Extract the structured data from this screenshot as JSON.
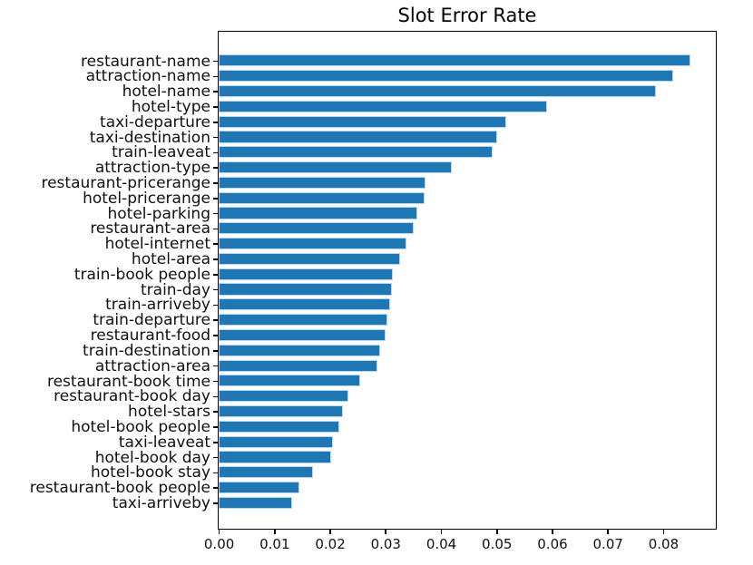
{
  "chart_data": {
    "type": "bar",
    "orientation": "horizontal",
    "title": "Slot Error Rate",
    "xlabel": "",
    "ylabel": "",
    "grid": false,
    "legend": false,
    "bar_color": "#1f77b4",
    "bar_edge_color": "#b9d7ee",
    "axis_color": "#000000",
    "text_color": "#111111",
    "xlim": [
      0,
      0.0893
    ],
    "categories": [
      "restaurant-name",
      "attraction-name",
      "hotel-name",
      "hotel-type",
      "taxi-departure",
      "taxi-destination",
      "train-leaveat",
      "attraction-type",
      "restaurant-pricerange",
      "hotel-pricerange",
      "hotel-parking",
      "restaurant-area",
      "hotel-internet",
      "hotel-area",
      "train-book people",
      "train-day",
      "train-arriveby",
      "train-departure",
      "restaurant-food",
      "train-destination",
      "attraction-area",
      "restaurant-book time",
      "restaurant-book day",
      "hotel-stars",
      "hotel-book people",
      "taxi-leaveat",
      "hotel-book day",
      "hotel-book stay",
      "restaurant-book people",
      "taxi-arriveby"
    ],
    "values": [
      0.085,
      0.0818,
      0.0787,
      0.0592,
      0.0517,
      0.0501,
      0.0494,
      0.0419,
      0.0373,
      0.0371,
      0.0357,
      0.0351,
      0.0338,
      0.0326,
      0.0314,
      0.0312,
      0.0309,
      0.0304,
      0.03,
      0.0291,
      0.0285,
      0.0254,
      0.0234,
      0.0223,
      0.0217,
      0.0206,
      0.0203,
      0.017,
      0.0146,
      0.0133
    ],
    "xticks": {
      "values": [
        0.0,
        0.01,
        0.02,
        0.03,
        0.04,
        0.05,
        0.06,
        0.07,
        0.08
      ],
      "labels": [
        "0.00",
        "0.01",
        "0.02",
        "0.03",
        "0.04",
        "0.05",
        "0.06",
        "0.07",
        "0.08"
      ]
    }
  }
}
